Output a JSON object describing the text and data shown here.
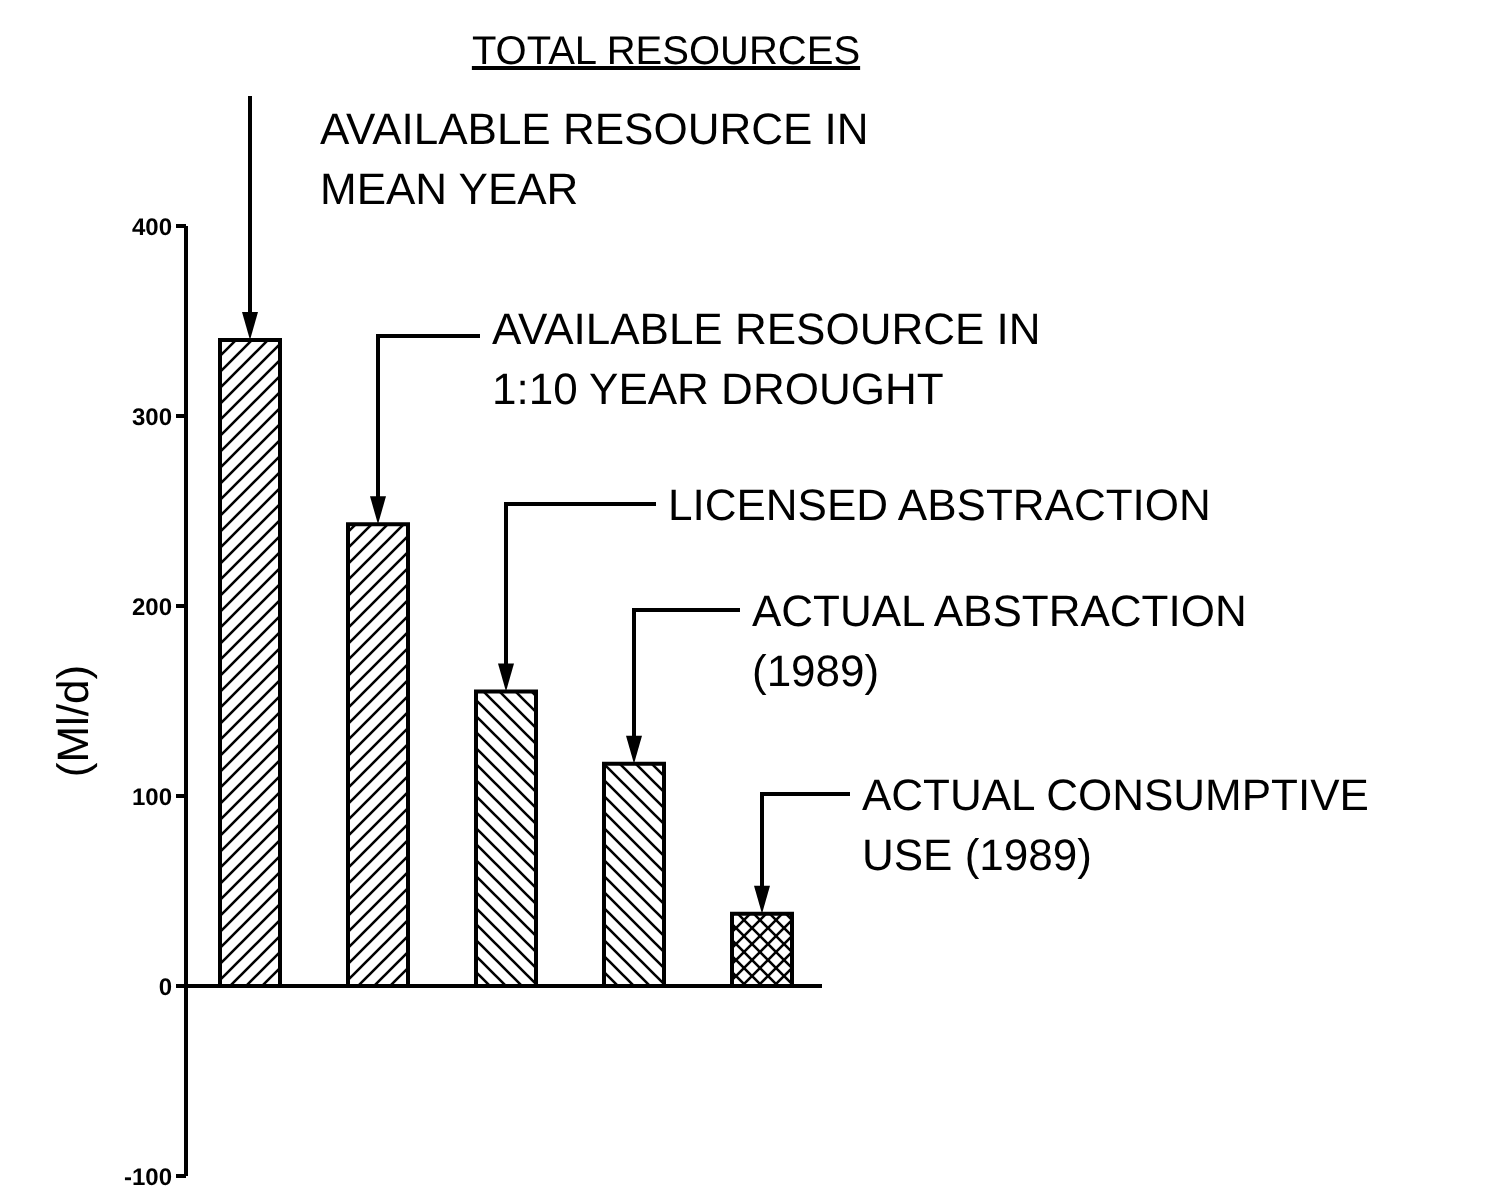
{
  "chart_data": {
    "type": "bar",
    "title": "TOTAL RESOURCES",
    "ylabel": "(Ml/d)",
    "categories": [
      null,
      null,
      null,
      null,
      null
    ],
    "values": [
      340,
      243,
      155,
      117,
      38
    ],
    "colors": [
      "#000000",
      "#000000",
      "#000000",
      "#000000",
      "#000000"
    ],
    "ylim": [
      -100,
      400
    ],
    "yticks": [
      -100,
      0,
      100,
      200,
      300,
      400
    ],
    "legend": false,
    "annotations": [
      "AVAILABLE RESOURCE IN MEAN YEAR",
      "AVAILABLE RESOURCE IN 1:10 YEAR DROUGHT",
      "LICENSED ABSTRACTION",
      "ACTUAL ABSTRACTION (1989)",
      "ACTUAL CONSUMPTIVE USE (1989)"
    ]
  }
}
